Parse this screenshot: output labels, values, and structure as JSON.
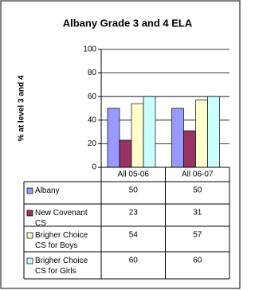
{
  "chart_data": {
    "type": "bar",
    "title": "Albany Grade 3 and 4 ELA",
    "y_label": "% at level 3 and 4",
    "categories": [
      "All 05-06",
      "All 06-07"
    ],
    "series": [
      {
        "name": "Albany",
        "color": "#9999ff",
        "values": [
          50,
          50
        ]
      },
      {
        "name": "New Covenant CS",
        "color": "#993366",
        "values": [
          23,
          31
        ]
      },
      {
        "name": "Brigher Choice CS for Boys",
        "color": "#ffffcc",
        "values": [
          54,
          57
        ]
      },
      {
        "name": "Brigher Choice CS for Girls",
        "color": "#ccffff",
        "values": [
          60,
          60
        ]
      }
    ],
    "ylim": [
      0,
      100
    ],
    "yticks": [
      0,
      20,
      40,
      60,
      80,
      100
    ],
    "grid": true
  }
}
